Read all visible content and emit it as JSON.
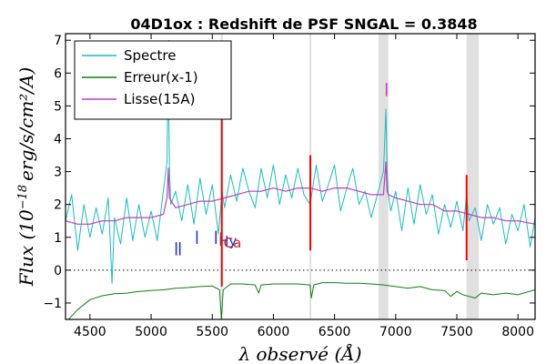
{
  "chart_data": {
    "type": "line",
    "title": "04D1ox : Redshift de PSF SNGAL = 0.3848",
    "xlabel": "λ observé (Å)",
    "ylabel": "Flux (10^-18 erg/s/cm²/A)",
    "ylabel_parts": {
      "prefix": "Flux (10",
      "exp": "−18",
      "suffix": "erg/s/cm²/A)"
    },
    "xlim": [
      4300,
      8140
    ],
    "ylim": [
      -1.5,
      7.2
    ],
    "xticks": [
      4500,
      5000,
      5500,
      6000,
      6500,
      7000,
      7500,
      8000
    ],
    "yticks": [
      -1,
      0,
      1,
      2,
      3,
      4,
      5,
      6,
      7
    ],
    "grid": false,
    "legend": {
      "placement": "top-left",
      "entries": [
        {
          "name": "Spectre",
          "color": "#17bebe"
        },
        {
          "name": "Erreur(x-1)",
          "color": "#108010"
        },
        {
          "name": "Lisse(15A)",
          "color": "#bf3fbf"
        }
      ]
    },
    "zero_line": {
      "y": 0,
      "style": "dotted"
    },
    "shaded_bands": [
      {
        "x0": 5570,
        "x1": 5585
      },
      {
        "x0": 6295,
        "x1": 6310
      },
      {
        "x0": 6860,
        "x1": 6940
      },
      {
        "x0": 7580,
        "x1": 7680
      }
    ],
    "series": [
      {
        "name": "Spectre",
        "color": "#17bebe",
        "x": [
          4300,
          4350,
          4400,
          4450,
          4500,
          4550,
          4600,
          4650,
          4680,
          4700,
          4750,
          4800,
          4850,
          4900,
          4950,
          5000,
          5050,
          5100,
          5130,
          5140,
          5150,
          5160,
          5200,
          5250,
          5300,
          5350,
          5400,
          5450,
          5500,
          5550,
          5580,
          5600,
          5650,
          5700,
          5750,
          5800,
          5850,
          5900,
          5950,
          6000,
          6050,
          6100,
          6150,
          6200,
          6250,
          6300,
          6350,
          6400,
          6450,
          6500,
          6550,
          6600,
          6650,
          6700,
          6750,
          6800,
          6850,
          6900,
          6920,
          6930,
          6940,
          6960,
          7000,
          7050,
          7100,
          7150,
          7200,
          7250,
          7300,
          7350,
          7400,
          7450,
          7500,
          7550,
          7580,
          7600,
          7650,
          7700,
          7750,
          7800,
          7850,
          7900,
          7950,
          8000,
          8050,
          8100,
          8140
        ],
        "values": [
          1.5,
          2.3,
          0.6,
          2.0,
          1.0,
          1.9,
          1.1,
          2.2,
          -0.4,
          1.6,
          0.8,
          2.2,
          0.9,
          2.0,
          1.0,
          1.8,
          0.9,
          2.4,
          3.3,
          6.4,
          3.1,
          2.0,
          2.4,
          1.5,
          2.6,
          1.4,
          2.8,
          1.7,
          2.6,
          1.1,
          2.4,
          1.9,
          2.9,
          2.1,
          3.1,
          2.4,
          1.9,
          3.1,
          2.2,
          3.2,
          2.0,
          2.9,
          2.2,
          3.1,
          2.3,
          2.0,
          3.2,
          2.1,
          2.6,
          3.2,
          1.8,
          2.5,
          3.1,
          2.0,
          2.4,
          1.6,
          2.3,
          3.0,
          4.9,
          3.0,
          2.3,
          1.8,
          2.4,
          1.2,
          2.5,
          1.4,
          2.6,
          1.7,
          2.3,
          1.1,
          2.0,
          1.3,
          2.1,
          1.2,
          2.3,
          1.5,
          1.9,
          0.9,
          2.0,
          1.4,
          1.9,
          0.8,
          1.7,
          1.2,
          2.0,
          0.7,
          1.6
        ]
      },
      {
        "name": "Erreur(x-1)",
        "color": "#108010",
        "x": [
          4300,
          4400,
          4500,
          4600,
          4700,
          4800,
          4900,
          5000,
          5100,
          5200,
          5300,
          5400,
          5500,
          5560,
          5575,
          5590,
          5650,
          5750,
          5850,
          5880,
          5900,
          6000,
          6100,
          6200,
          6300,
          6310,
          6330,
          6400,
          6500,
          6600,
          6700,
          6800,
          6900,
          7000,
          7100,
          7200,
          7300,
          7400,
          7450,
          7500,
          7550,
          7600,
          7650,
          7700,
          7800,
          7900,
          8000,
          8140
        ],
        "values": [
          -1.6,
          -1.2,
          -0.9,
          -0.78,
          -0.72,
          -0.7,
          -0.65,
          -0.62,
          -0.6,
          -0.55,
          -0.53,
          -0.5,
          -0.48,
          -0.6,
          -1.5,
          -0.6,
          -0.42,
          -0.42,
          -0.45,
          -0.7,
          -0.45,
          -0.42,
          -0.42,
          -0.42,
          -0.45,
          -0.85,
          -0.45,
          -0.38,
          -0.38,
          -0.4,
          -0.4,
          -0.42,
          -0.45,
          -0.5,
          -0.55,
          -0.5,
          -0.6,
          -0.62,
          -0.8,
          -0.65,
          -0.75,
          -0.8,
          -0.85,
          -0.7,
          -0.75,
          -0.7,
          -0.75,
          -0.6
        ]
      },
      {
        "name": "Lisse(15A)",
        "color": "#bf3fbf",
        "x": [
          4300,
          4400,
          4500,
          4600,
          4700,
          4800,
          4900,
          5000,
          5100,
          5130,
          5140,
          5150,
          5200,
          5300,
          5400,
          5500,
          5600,
          5700,
          5800,
          5900,
          6000,
          6100,
          6200,
          6300,
          6400,
          6500,
          6600,
          6700,
          6800,
          6900,
          6920,
          6930,
          6940,
          7000,
          7100,
          7200,
          7300,
          7400,
          7500,
          7600,
          7700,
          7800,
          7900,
          8000,
          8140
        ],
        "values": [
          1.5,
          1.4,
          1.4,
          1.5,
          1.5,
          1.6,
          1.6,
          1.6,
          1.7,
          2.2,
          3.1,
          2.2,
          1.9,
          2.0,
          2.1,
          2.1,
          2.2,
          2.3,
          2.4,
          2.4,
          2.5,
          2.4,
          2.5,
          2.5,
          2.4,
          2.5,
          2.5,
          2.4,
          2.3,
          2.3,
          3.3,
          2.4,
          2.3,
          2.2,
          2.1,
          2.0,
          2.0,
          1.8,
          1.8,
          1.7,
          1.6,
          1.6,
          1.5,
          1.5,
          1.4
        ]
      }
    ],
    "line_markers": [
      {
        "x": 5145,
        "y0": 6.6,
        "y1": 7.0,
        "label": "Ox",
        "color": "#cc33cc"
      },
      {
        "x": 6925,
        "y0": 5.3,
        "y1": 5.7,
        "label": "",
        "color": "#cc33cc"
      },
      {
        "x": 5205,
        "y0": 0.45,
        "y1": 0.85,
        "label": "",
        "color": "#2233cc"
      },
      {
        "x": 5235,
        "y0": 0.45,
        "y1": 0.85,
        "label": "",
        "color": "#2233cc"
      },
      {
        "x": 5375,
        "y0": 0.8,
        "y1": 1.2,
        "label": "",
        "color": "#2233cc"
      },
      {
        "x": 5530,
        "y0": 0.8,
        "y1": 1.2,
        "label": "Hy",
        "color": "#2233cc"
      },
      {
        "x": 5570,
        "y0": 0.75,
        "y1": 1.15,
        "label": "Ca",
        "color": "#cc2222"
      }
    ],
    "red_spikes": [
      {
        "x": 5578,
        "y0": -0.5,
        "y1": 5.0
      },
      {
        "x": 6302,
        "y0": 0.6,
        "y1": 3.5
      },
      {
        "x": 7580,
        "y0": 0.3,
        "y1": 2.9
      }
    ]
  }
}
